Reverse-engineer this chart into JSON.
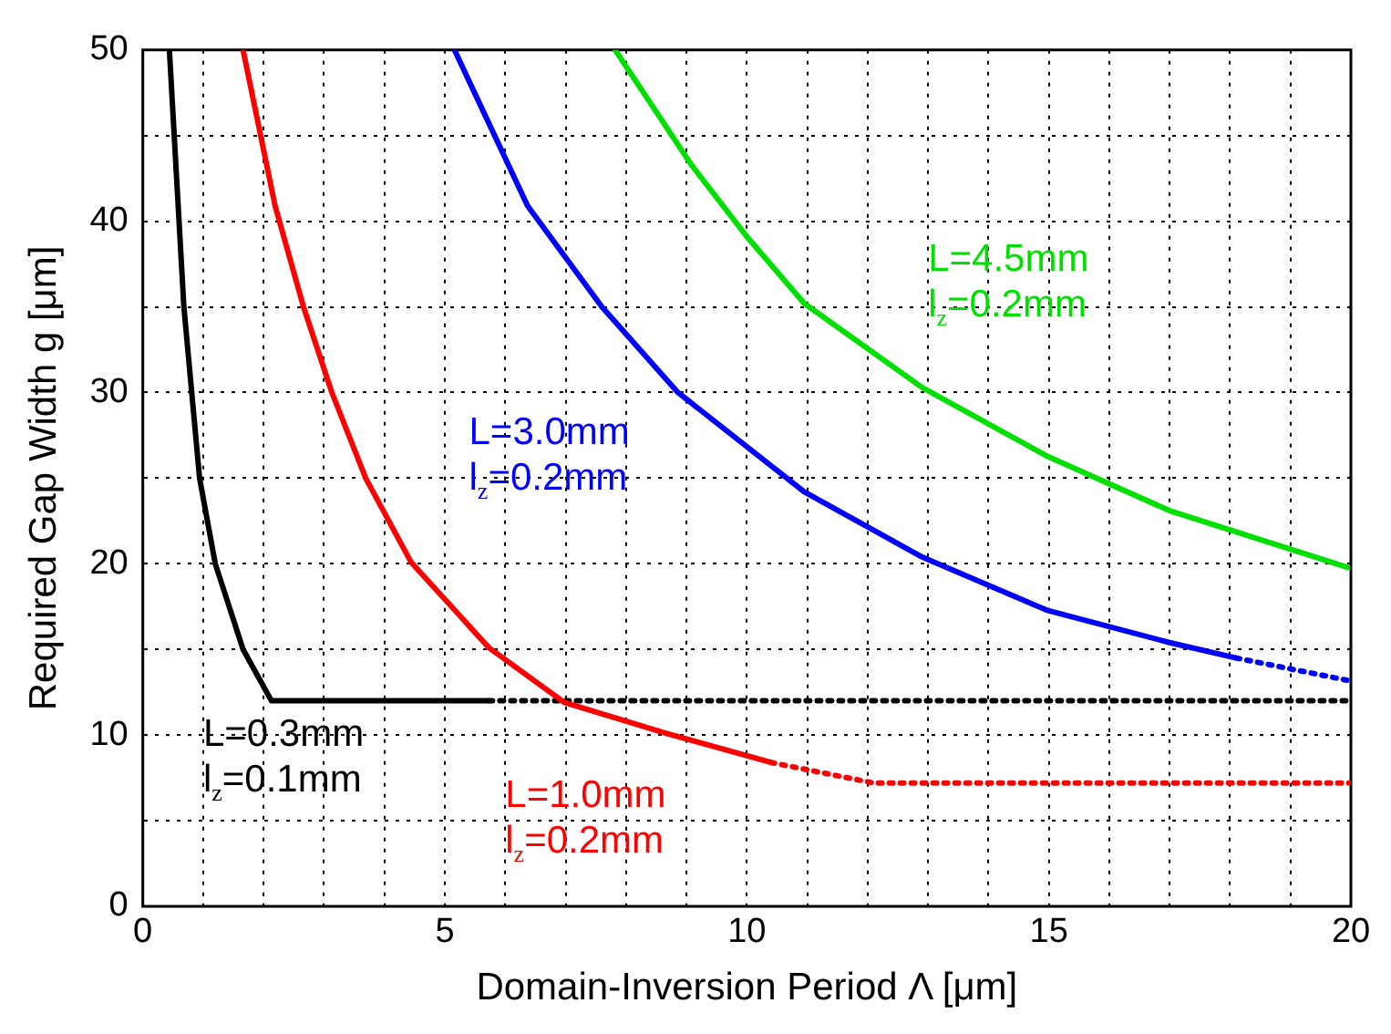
{
  "chart_data": {
    "type": "line",
    "xlabel": "Domain-Inversion Period Λ [μm]",
    "ylabel": "Required Gap Width g [μm]",
    "xlim": [
      0,
      20
    ],
    "ylim": [
      0,
      50
    ],
    "xticks": [
      0,
      {
        "value": 1,
        "label": null
      },
      {
        "value": 2,
        "label": null
      },
      {
        "value": 3,
        "label": null
      },
      {
        "value": 4,
        "label": null
      },
      5,
      {
        "value": 6,
        "label": null
      },
      {
        "value": 7,
        "label": null
      },
      {
        "value": 8,
        "label": null
      },
      {
        "value": 9,
        "label": null
      },
      10,
      {
        "value": 11,
        "label": null
      },
      {
        "value": 12,
        "label": null
      },
      {
        "value": 13,
        "label": null
      },
      {
        "value": 14,
        "label": null
      },
      15,
      {
        "value": 16,
        "label": null
      },
      {
        "value": 17,
        "label": null
      },
      {
        "value": 18,
        "label": null
      },
      {
        "value": 19,
        "label": null
      },
      20
    ],
    "yticks": [
      0,
      {
        "value": 5,
        "label": null
      },
      10,
      {
        "value": 15,
        "label": null
      },
      20,
      {
        "value": 25,
        "label": null
      },
      30,
      {
        "value": 35,
        "label": null
      },
      40,
      {
        "value": 45,
        "label": null
      },
      50
    ],
    "grid": true,
    "legend": false,
    "marker": "none",
    "series": [
      {
        "color": "#000000",
        "line_style": "solid",
        "x": [
          0.44,
          0.68,
          0.94,
          1.2,
          1.66,
          2.13,
          5.73
        ],
        "values": [
          50,
          35,
          25,
          20,
          15,
          12,
          12
        ]
      },
      {
        "color": "#ff0000",
        "line_style": "solid",
        "x": [
          1.66,
          2.19,
          2.66,
          3.13,
          3.69,
          4.44,
          5.73,
          6.98,
          8.67,
          10.4
        ],
        "values": [
          50,
          40.9,
          35,
          30,
          25,
          20.1,
          15.1,
          11.9,
          10.1,
          8.4
        ]
      },
      {
        "color": "#0000ff",
        "line_style": "solid",
        "x": [
          5.16,
          6.37,
          7.6,
          8.86,
          10.95,
          12.9,
          14.96,
          17.0,
          18.1
        ],
        "values": [
          50,
          40.9,
          35,
          30,
          24.2,
          20.4,
          17.3,
          15.4,
          14.5
        ]
      },
      {
        "color": "#00e000",
        "line_style": "solid",
        "x": [
          7.82,
          9.08,
          10.0,
          10.95,
          12.9,
          14.96,
          17.0,
          19.94
        ],
        "values": [
          50,
          43.3,
          39.1,
          35.2,
          30.3,
          26.3,
          23.1,
          19.8
        ]
      },
      {
        "color": "#000000",
        "line_style": "dotted",
        "x": [
          5.73,
          20
        ],
        "values": [
          12,
          12
        ]
      },
      {
        "color": "#ff0000",
        "line_style": "dotted",
        "x": [
          10.4,
          12.1,
          20
        ],
        "values": [
          8.4,
          7.2,
          7.2
        ]
      },
      {
        "color": "#0000ff",
        "line_style": "dotted",
        "x": [
          18.1,
          19.94
        ],
        "values": [
          14.5,
          13.2
        ]
      }
    ],
    "annotations": [
      "L=0.3mm\nl$_{z}$=0.1mm",
      "L=1.0mm\nl$_{z}$=0.2mm",
      "L=3.0mm\nl$_{z}$=0.2mm",
      "L=4.5mm\nl$_{z}$=0.2mm"
    ]
  }
}
